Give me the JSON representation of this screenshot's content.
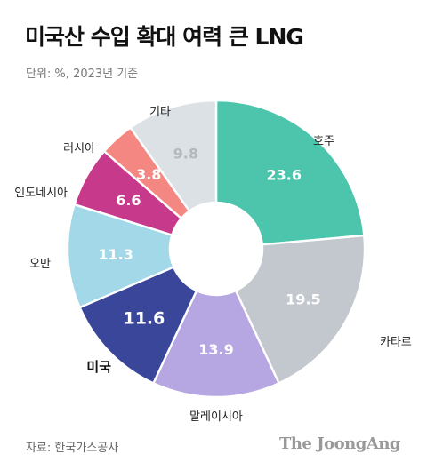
{
  "chart_data": {
    "type": "pie",
    "title": "미국산 수입 확대 여력 큰 LNG",
    "subtitle": "단위: %, 2023년 기준",
    "categories": [
      "호주",
      "카타르",
      "말레이시아",
      "미국",
      "오만",
      "인도네시아",
      "러시아",
      "기타"
    ],
    "values": [
      23.6,
      19.5,
      13.9,
      11.6,
      11.3,
      6.6,
      3.8,
      9.8
    ],
    "colors": [
      "#4dc4ac",
      "#c2c8ce",
      "#b6a6e2",
      "#3a4699",
      "#a2d8e8",
      "#c7398b",
      "#f48781",
      "#dce1e5"
    ],
    "value_label_colors": [
      "#ffffff",
      "#ffffff",
      "#ffffff",
      "#ffffff",
      "#ffffff",
      "#ffffff",
      "#ffffff",
      "#b4b8bc"
    ],
    "highlight": "미국",
    "donut": true,
    "source": "자료: 한국가스공사"
  },
  "brand": "The JoongAng"
}
